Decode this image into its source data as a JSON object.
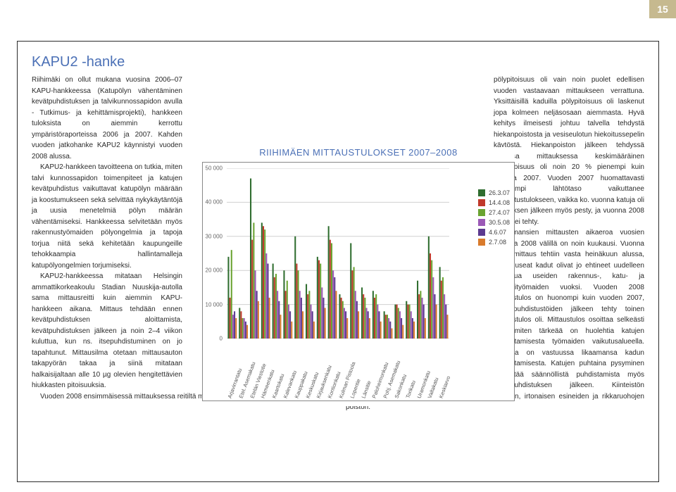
{
  "page_number": "15",
  "title": "KAPU2 -hanke",
  "chart": {
    "title": "RIIHIMÄEN MITTAUSTULOKSET 2007–2008",
    "type": "bar",
    "ylim": [
      0,
      50000
    ],
    "ytick_step": 10000,
    "yticks": [
      "0",
      "10 000",
      "20 000",
      "30 000",
      "40 000",
      "50 000"
    ],
    "background_color": "#ffffff",
    "grid_color": "#d0d0d0",
    "axis_font_size": 8,
    "categories": [
      "Arjavirrantatu",
      "Etel. Asemakatu",
      "Etelän Viestotie",
      "Hämeenkatu",
      "Kaartokatu",
      "Kalevankatu",
      "Kauppakatu",
      "Keskuskatu",
      "Kirjauksenkatu",
      "Kontionkatu",
      "Kulman Pistoola",
      "Lopentie",
      "Länsitie",
      "Paloheimonkatu",
      "Pohj. Asemakatu",
      "Sakonkatu",
      "Torikatu",
      "Uramonkatu",
      "Valtakatu",
      "Keskiarvo"
    ],
    "series": [
      {
        "label": "26.3.07",
        "color": "#2f6d2f"
      },
      {
        "label": "14.4.08",
        "color": "#c0392b"
      },
      {
        "label": "27.4.07",
        "color": "#6aa331"
      },
      {
        "label": "30.5.08",
        "color": "#9b59b6"
      },
      {
        "label": "4.6.07",
        "color": "#5c3a8f"
      },
      {
        "label": "2.7.08",
        "color": "#d97b2c"
      }
    ],
    "values": [
      [
        24000,
        12000,
        26000,
        7000,
        8000,
        6000
      ],
      [
        9000,
        8000,
        6000,
        6000,
        5000,
        4000
      ],
      [
        47000,
        29000,
        34000,
        20000,
        14000,
        11000
      ],
      [
        34000,
        33000,
        32000,
        25000,
        22000,
        12000
      ],
      [
        22000,
        18000,
        19000,
        14000,
        11000,
        7000
      ],
      [
        20000,
        14000,
        17000,
        10000,
        8000,
        5000
      ],
      [
        30000,
        22000,
        20000,
        14000,
        12000,
        8000
      ],
      [
        16000,
        13000,
        14000,
        10000,
        8000,
        5000
      ],
      [
        24000,
        23000,
        22000,
        15000,
        12000,
        9000
      ],
      [
        33000,
        29000,
        28000,
        20000,
        18000,
        14000
      ],
      [
        13000,
        12000,
        11000,
        9000,
        8000,
        6000
      ],
      [
        28000,
        20000,
        21000,
        14000,
        11000,
        8000
      ],
      [
        15000,
        13000,
        12000,
        9000,
        8000,
        6000
      ],
      [
        14000,
        12000,
        13000,
        10000,
        8000,
        5000
      ],
      [
        8000,
        7000,
        7000,
        6000,
        5000,
        3000
      ],
      [
        10000,
        10000,
        9000,
        8000,
        6000,
        4000
      ],
      [
        11000,
        10000,
        10000,
        8000,
        6000,
        5000
      ],
      [
        17000,
        13000,
        14000,
        12000,
        10000,
        6000
      ],
      [
        30000,
        25000,
        23000,
        18000,
        13000,
        10000
      ],
      [
        21000,
        17000,
        18000,
        13000,
        10000,
        7000
      ]
    ],
    "bar_group_ratio": 0.82
  },
  "paragraphs_left": [
    "Riihimäki on ollut mukana vuosina 2006–07 KAPU-hankkeessa (Katupölyn vähentäminen kevätpuhdistuksen ja talvikunnossapidon avulla - Tutkimus- ja kehittämisprojekti), hankkeen tuloksista on aiemmin kerrottu ympäristöraporteissa 2006 ja 2007. Kahden vuoden jatkohanke KAPU2 käynnistyi vuoden 2008 alussa.",
    "KAPU2-hankkeen tavoitteena on tutkia, miten talvi kunnossapidon toimenpiteet ja katujen kevätpuhdistus vaikuttavat katupölyn määrään ja koostumukseen sekä selvittää nykykäytäntöjä ja uusia menetelmiä pölyn määrän vähentämiseksi. Hankkeessa selvitetään myös rakennustyömaiden pölyongelmia ja tapoja torjua niitä sekä kehitetään kaupungeille tehokkaampia hallintamalleja katupölyongelmien torjumiseksi.",
    "KAPU2-hankkeessa mitataan Helsingin ammattikorkeakoulu Stadian Nuuskija-autolla sama mittausreitti kuin aiemmin KAPU-hankkeen aikana. Mittaus tehdään ennen kevätpuhdistuksen aloittamista, kevätpuhdistuksen jälkeen ja noin 2–4 viikon kuluttua, kun ns. itsepuhdistuminen on jo tapahtunut. Mittausilma otetaan mittausauton takapyörän takaa ja siinä mitataan halkaisijaltaan alle 10 µg olevien hengitettävien hiukkasten pitoisuuksia.",
    "Vuoden 2008 ensimmäisessä mittauksessa reitiltä mitattu keskimääräinen"
  ],
  "paragraphs_right": [
    "pölypitoisuus oli vain noin puolet edellisen vuoden vastaavaan mittaukseen verrattuna. Yksittäisillä kaduilla pölypitoisuus oli laskenut jopa kolmeen neljäsosaan aiemmasta. Hyvä kehitys ilmeisesti johtuu talvella tehdystä hiekanpoistosta ja vesiseulotun hiekoitussepelin käytöstä. Hiekanpoiston jälkeen tehdyssä toisessa mittauksessa keskimääräinen pölypitoisuus oli noin 20 % pienempi kuin vuonna 2007. Vuoden 2007 huomattavasti korkeampi lähtötaso vaikuttanee puhdistustulokseen, vaikka ko. vuonna katuja oli harjauksen jälkeen myös pesty, ja vuonna 2008 pesua ei tehty.",
    "Kolmansien mittausten aikaeroa vuosien 2007 ja 2008 välillä on noin kuukausi. Vuonna 2008 mittaus tehtiin vasta heinäkuun alussa, jolloin useat kadut olivat jo ehtineet uudelleen likaantua useiden rakennus-, katu- ja viemärityömaiden vuoksi. Vuoden 2008 mittaustulos on huonompi kuin vuoden 2007, heti puhdistustöiden jälkeen tehty toinen mittaustulos oli. Mittaustulos osoittaa selkeästi sen, miten tärkeää on huolehtia katujen puhdistamisesta työmaiden vaikutusalueella. Työmaa on vastuussa likaamansa kadun puhdistamisesta. Katujen puhtaina pysyminen edellyttää säännöllistä puhdistamista myös kevätpuhdistuksen jälkeen. Kiinteistön omistajien puhdistusvelvollisuus käsittää lian, roskien, irtonaisen esineiden ja rikkaruohojen poiston."
  ]
}
